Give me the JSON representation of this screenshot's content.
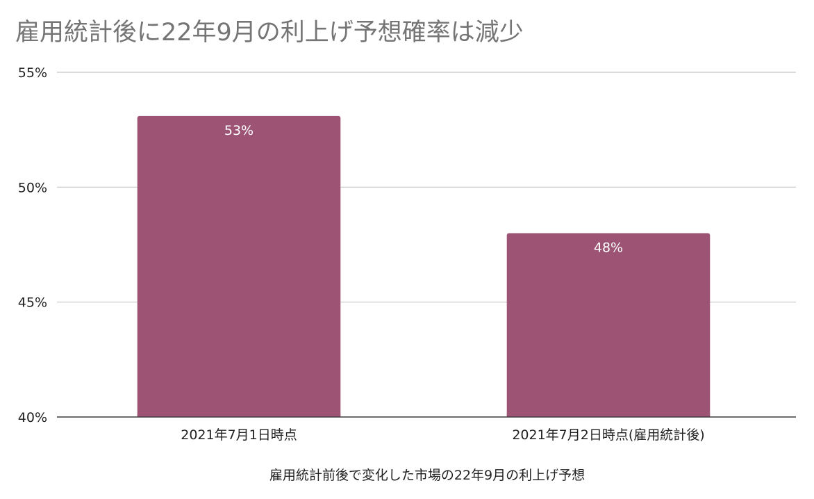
{
  "chart_data": {
    "type": "bar",
    "title": "雇用統計後に22年9月の利上げ予想確率は減少",
    "xlabel": "雇用統計前後で変化した市場の22年9月の利上げ予想",
    "ylabel": "",
    "categories": [
      "2021年7月1日時点",
      "2021年7月2日時点(雇用統計後)"
    ],
    "series": [
      {
        "values": [
          53.1,
          48.0
        ],
        "data_labels": [
          "53%",
          "48%"
        ],
        "color": "#9c5374"
      }
    ],
    "ylim": [
      40,
      55
    ],
    "yticks": [
      40,
      45,
      50,
      55
    ],
    "ytick_labels": [
      "40%",
      "45%",
      "50%",
      "55%"
    ],
    "grid": true,
    "legend": "none"
  }
}
